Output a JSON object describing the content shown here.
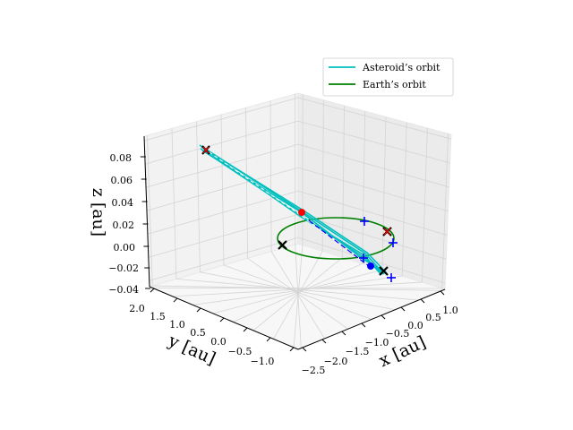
{
  "chart_data": {
    "type": "line3d",
    "xlabel": "x [au]",
    "ylabel": "y [au]",
    "zlabel": "z [au]",
    "xlim": [
      -2.6,
      1.2
    ],
    "ylim": [
      -1.3,
      2.0
    ],
    "zlim": [
      -0.04,
      0.095
    ],
    "xticks": [
      "−2.5",
      "−2.0",
      "−1.5",
      "−1.0",
      "−0.5",
      "0.0",
      "0.5",
      "1.0"
    ],
    "yticks": [
      "2.0",
      "1.5",
      "1.0",
      "0.5",
      "0.0",
      "−0.5",
      "−1.0"
    ],
    "zticks": [
      "0.08",
      "0.06",
      "0.04",
      "0.02",
      "0.00",
      "−0.02",
      "−0.04"
    ],
    "grid": true,
    "legend_position": "top-right",
    "colors": {
      "asteroid": "#00bfbf",
      "earth": "#008000",
      "red": "#ff0000",
      "blue": "#0000ff",
      "black": "#000000"
    },
    "series": [
      {
        "name": "Asteroid’s orbit",
        "color": "#00bfbf"
      },
      {
        "name": "Earth’s orbit",
        "color": "#008000"
      }
    ]
  }
}
